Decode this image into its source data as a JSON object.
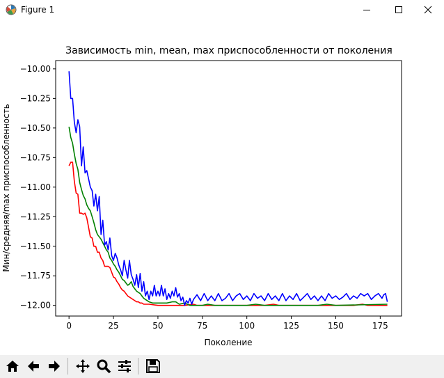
{
  "window": {
    "title": "Figure 1",
    "icons": [
      "matplotlib-icon",
      "minimize-icon",
      "maximize-icon",
      "close-icon"
    ]
  },
  "toolbar": {
    "buttons": [
      "home-icon",
      "back-icon",
      "forward-icon",
      "pan-icon",
      "zoom-icon",
      "configure-subplots-icon",
      "save-icon"
    ]
  },
  "colors": {
    "min": "#ff0000",
    "mean": "#008000",
    "max": "#0000ff"
  },
  "chart_data": {
    "type": "line",
    "title": "Зависимость min, mean, max приспособленности от поколения",
    "xlabel": "Поколение",
    "ylabel": "Мин/средняя/max приспособленность",
    "xlim": [
      -7.5,
      187
    ],
    "ylim": [
      -12.09,
      -9.93
    ],
    "xticks": [
      0,
      25,
      50,
      75,
      100,
      125,
      150,
      175
    ],
    "yticks": [
      -10.0,
      -10.25,
      -10.5,
      -10.75,
      -11.0,
      -11.25,
      -11.5,
      -11.75,
      -12.0
    ],
    "ytick_labels": [
      "−10.00",
      "−10.25",
      "−10.50",
      "−10.75",
      "−11.00",
      "−11.25",
      "−11.50",
      "−11.75",
      "−12.00"
    ],
    "grid": false,
    "series": [
      {
        "color": "#ff0000",
        "points": [
          [
            0,
            -10.82
          ],
          [
            1,
            -10.79
          ],
          [
            2,
            -10.79
          ],
          [
            3,
            -10.95
          ],
          [
            4,
            -11.05
          ],
          [
            5,
            -11.06
          ],
          [
            6,
            -11.22
          ],
          [
            7,
            -11.22
          ],
          [
            8,
            -11.23
          ],
          [
            9,
            -11.22
          ],
          [
            10,
            -11.26
          ],
          [
            11,
            -11.34
          ],
          [
            12,
            -11.42
          ],
          [
            13,
            -11.43
          ],
          [
            14,
            -11.5
          ],
          [
            15,
            -11.5
          ],
          [
            16,
            -11.55
          ],
          [
            17,
            -11.55
          ],
          [
            18,
            -11.6
          ],
          [
            19,
            -11.62
          ],
          [
            20,
            -11.67
          ],
          [
            21,
            -11.67
          ],
          [
            22,
            -11.67
          ],
          [
            23,
            -11.68
          ],
          [
            24,
            -11.72
          ],
          [
            25,
            -11.76
          ],
          [
            26,
            -11.77
          ],
          [
            27,
            -11.8
          ],
          [
            28,
            -11.82
          ],
          [
            29,
            -11.85
          ],
          [
            30,
            -11.87
          ],
          [
            31,
            -11.88
          ],
          [
            32,
            -11.9
          ],
          [
            33,
            -11.92
          ],
          [
            34,
            -11.93
          ],
          [
            35,
            -11.94
          ],
          [
            36,
            -11.95
          ],
          [
            37,
            -11.96
          ],
          [
            38,
            -11.97
          ],
          [
            39,
            -11.97
          ],
          [
            40,
            -11.98
          ],
          [
            41,
            -11.98
          ],
          [
            42,
            -11.99
          ],
          [
            43,
            -11.99
          ],
          [
            45,
            -11.99
          ],
          [
            50,
            -12.0
          ],
          [
            65,
            -12.0
          ],
          [
            70,
            -11.99
          ],
          [
            72,
            -12.0
          ],
          [
            110,
            -12.0
          ],
          [
            115,
            -11.99
          ],
          [
            118,
            -12.0
          ],
          [
            160,
            -12.0
          ],
          [
            165,
            -11.99
          ],
          [
            168,
            -12.0
          ],
          [
            179,
            -12.0
          ]
        ]
      },
      {
        "color": "#008000",
        "points": [
          [
            0,
            -10.49
          ],
          [
            1,
            -10.58
          ],
          [
            2,
            -10.63
          ],
          [
            3,
            -10.72
          ],
          [
            4,
            -10.8
          ],
          [
            5,
            -10.85
          ],
          [
            6,
            -10.96
          ],
          [
            7,
            -11.02
          ],
          [
            8,
            -11.07
          ],
          [
            9,
            -11.1
          ],
          [
            10,
            -11.15
          ],
          [
            11,
            -11.18
          ],
          [
            12,
            -11.2
          ],
          [
            13,
            -11.25
          ],
          [
            14,
            -11.3
          ],
          [
            15,
            -11.36
          ],
          [
            16,
            -11.4
          ],
          [
            17,
            -11.42
          ],
          [
            18,
            -11.44
          ],
          [
            19,
            -11.47
          ],
          [
            20,
            -11.5
          ],
          [
            21,
            -11.53
          ],
          [
            22,
            -11.55
          ],
          [
            23,
            -11.6
          ],
          [
            24,
            -11.62
          ],
          [
            25,
            -11.65
          ],
          [
            26,
            -11.67
          ],
          [
            27,
            -11.7
          ],
          [
            28,
            -11.72
          ],
          [
            29,
            -11.75
          ],
          [
            30,
            -11.78
          ],
          [
            31,
            -11.79
          ],
          [
            32,
            -11.81
          ],
          [
            33,
            -11.83
          ],
          [
            34,
            -11.82
          ],
          [
            35,
            -11.8
          ],
          [
            36,
            -11.84
          ],
          [
            37,
            -11.86
          ],
          [
            38,
            -11.88
          ],
          [
            39,
            -11.89
          ],
          [
            40,
            -11.9
          ],
          [
            41,
            -11.92
          ],
          [
            42,
            -11.94
          ],
          [
            43,
            -11.95
          ],
          [
            44,
            -11.96
          ],
          [
            45,
            -11.97
          ],
          [
            47,
            -11.98
          ],
          [
            50,
            -11.98
          ],
          [
            55,
            -11.98
          ],
          [
            58,
            -11.97
          ],
          [
            60,
            -11.97
          ],
          [
            62,
            -11.99
          ],
          [
            65,
            -11.98
          ],
          [
            68,
            -12.0
          ],
          [
            75,
            -12.0
          ],
          [
            78,
            -11.99
          ],
          [
            82,
            -12.0
          ],
          [
            100,
            -12.0
          ],
          [
            105,
            -11.99
          ],
          [
            110,
            -12.0
          ],
          [
            140,
            -12.0
          ],
          [
            145,
            -11.99
          ],
          [
            150,
            -12.0
          ],
          [
            179,
            -11.99
          ]
        ]
      },
      {
        "color": "#0000ff",
        "points": [
          [
            0,
            -10.02
          ],
          [
            1,
            -10.25
          ],
          [
            2,
            -10.25
          ],
          [
            3,
            -10.45
          ],
          [
            4,
            -10.54
          ],
          [
            5,
            -10.43
          ],
          [
            6,
            -10.49
          ],
          [
            7,
            -10.82
          ],
          [
            8,
            -10.66
          ],
          [
            9,
            -10.88
          ],
          [
            10,
            -10.86
          ],
          [
            11,
            -10.93
          ],
          [
            12,
            -11.0
          ],
          [
            13,
            -11.03
          ],
          [
            14,
            -11.16
          ],
          [
            15,
            -11.06
          ],
          [
            16,
            -11.2
          ],
          [
            17,
            -11.08
          ],
          [
            18,
            -11.4
          ],
          [
            19,
            -11.28
          ],
          [
            20,
            -11.49
          ],
          [
            21,
            -11.46
          ],
          [
            22,
            -11.53
          ],
          [
            23,
            -11.43
          ],
          [
            24,
            -11.58
          ],
          [
            25,
            -11.62
          ],
          [
            26,
            -11.56
          ],
          [
            27,
            -11.6
          ],
          [
            28,
            -11.66
          ],
          [
            29,
            -11.7
          ],
          [
            30,
            -11.75
          ],
          [
            31,
            -11.62
          ],
          [
            32,
            -11.7
          ],
          [
            33,
            -11.77
          ],
          [
            34,
            -11.62
          ],
          [
            35,
            -11.74
          ],
          [
            36,
            -11.78
          ],
          [
            37,
            -11.83
          ],
          [
            38,
            -11.74
          ],
          [
            39,
            -11.85
          ],
          [
            40,
            -11.73
          ],
          [
            41,
            -11.88
          ],
          [
            42,
            -11.8
          ],
          [
            43,
            -11.92
          ],
          [
            44,
            -11.88
          ],
          [
            45,
            -11.95
          ],
          [
            46,
            -11.88
          ],
          [
            47,
            -11.92
          ],
          [
            48,
            -11.83
          ],
          [
            49,
            -11.92
          ],
          [
            50,
            -11.88
          ],
          [
            51,
            -11.92
          ],
          [
            52,
            -11.83
          ],
          [
            53,
            -11.92
          ],
          [
            54,
            -11.86
          ],
          [
            55,
            -11.95
          ],
          [
            56,
            -11.9
          ],
          [
            57,
            -11.94
          ],
          [
            58,
            -11.88
          ],
          [
            59,
            -11.92
          ],
          [
            60,
            -11.85
          ],
          [
            61,
            -11.93
          ],
          [
            62,
            -11.9
          ],
          [
            63,
            -11.96
          ],
          [
            64,
            -11.93
          ],
          [
            65,
            -12.0
          ],
          [
            66,
            -11.96
          ],
          [
            67,
            -11.98
          ],
          [
            68,
            -11.94
          ],
          [
            69,
            -11.99
          ],
          [
            70,
            -11.95
          ],
          [
            72,
            -11.91
          ],
          [
            74,
            -11.96
          ],
          [
            76,
            -11.9
          ],
          [
            78,
            -11.96
          ],
          [
            80,
            -11.92
          ],
          [
            82,
            -11.96
          ],
          [
            84,
            -11.9
          ],
          [
            86,
            -11.96
          ],
          [
            88,
            -11.94
          ],
          [
            90,
            -11.9
          ],
          [
            92,
            -11.96
          ],
          [
            94,
            -11.92
          ],
          [
            96,
            -11.9
          ],
          [
            98,
            -11.95
          ],
          [
            100,
            -11.92
          ],
          [
            102,
            -11.96
          ],
          [
            104,
            -11.9
          ],
          [
            106,
            -11.94
          ],
          [
            108,
            -11.92
          ],
          [
            110,
            -11.96
          ],
          [
            112,
            -11.9
          ],
          [
            114,
            -11.95
          ],
          [
            116,
            -11.92
          ],
          [
            118,
            -11.96
          ],
          [
            120,
            -11.9
          ],
          [
            122,
            -11.96
          ],
          [
            124,
            -11.92
          ],
          [
            126,
            -11.95
          ],
          [
            128,
            -11.9
          ],
          [
            130,
            -11.96
          ],
          [
            132,
            -11.93
          ],
          [
            134,
            -11.9
          ],
          [
            136,
            -11.95
          ],
          [
            138,
            -11.92
          ],
          [
            140,
            -11.96
          ],
          [
            142,
            -11.92
          ],
          [
            144,
            -11.96
          ],
          [
            146,
            -11.9
          ],
          [
            148,
            -11.94
          ],
          [
            150,
            -11.92
          ],
          [
            152,
            -11.95
          ],
          [
            154,
            -11.93
          ],
          [
            156,
            -11.9
          ],
          [
            158,
            -11.95
          ],
          [
            160,
            -11.92
          ],
          [
            162,
            -11.94
          ],
          [
            164,
            -11.9
          ],
          [
            166,
            -11.92
          ],
          [
            168,
            -11.9
          ],
          [
            170,
            -11.95
          ],
          [
            172,
            -11.92
          ],
          [
            174,
            -11.9
          ],
          [
            176,
            -11.94
          ],
          [
            177,
            -11.91
          ],
          [
            178,
            -11.9
          ],
          [
            179,
            -11.97
          ]
        ]
      }
    ]
  }
}
